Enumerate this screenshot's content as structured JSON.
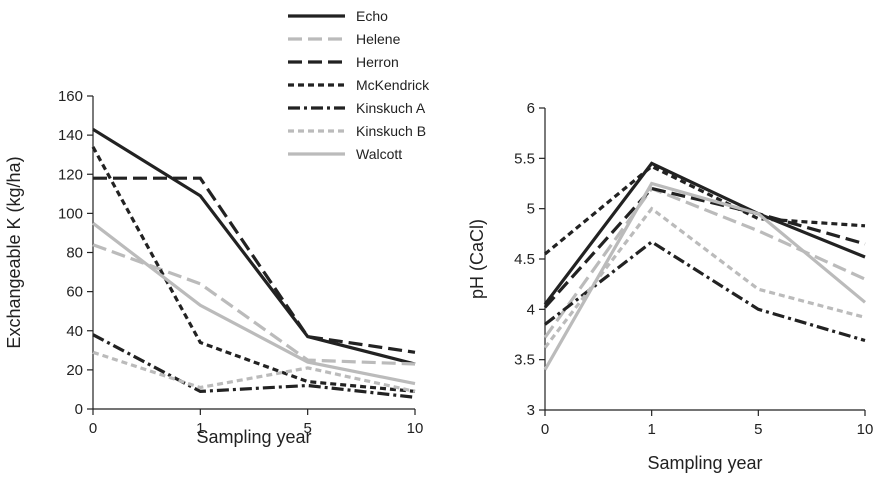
{
  "chart_data": [
    {
      "type": "line",
      "xlabel": "Sampling year",
      "ylabel": "Exchangeable K (kg/ha)",
      "categories": [
        "0",
        "1",
        "5",
        "10"
      ],
      "ylim": [
        0,
        160
      ],
      "yticks": [
        "0",
        "20",
        "40",
        "60",
        "80",
        "100",
        "120",
        "140",
        "160"
      ],
      "grid": false,
      "series": [
        {
          "name": "Echo",
          "color": "#222222",
          "dash": "solid",
          "values": [
            143,
            109,
            37,
            23
          ]
        },
        {
          "name": "Helene",
          "color": "#bbbbbb",
          "dash": "longdash",
          "values": [
            84,
            64,
            25,
            23
          ]
        },
        {
          "name": "Herron",
          "color": "#222222",
          "dash": "longdash",
          "values": [
            118,
            118,
            37,
            29
          ]
        },
        {
          "name": "McKendrick",
          "color": "#222222",
          "dash": "shortdash",
          "values": [
            134,
            34,
            14,
            9
          ]
        },
        {
          "name": "Kinskuch A",
          "color": "#222222",
          "dash": "dashdot",
          "values": [
            38,
            9,
            12,
            6
          ]
        },
        {
          "name": "Kinskuch B",
          "color": "#bbbbbb",
          "dash": "shortdash",
          "values": [
            29,
            11,
            21,
            9
          ]
        },
        {
          "name": "Walcott",
          "color": "#bbbbbb",
          "dash": "solid",
          "values": [
            95,
            53,
            24,
            13
          ]
        }
      ]
    },
    {
      "type": "line",
      "xlabel": "Sampling year",
      "ylabel": "pH (CaCl)",
      "categories": [
        "0",
        "1",
        "5",
        "10"
      ],
      "ylim": [
        3,
        6
      ],
      "yticks": [
        "3",
        "3.5",
        "4",
        "4.5",
        "5",
        "5.5",
        "6"
      ],
      "grid": false,
      "series": [
        {
          "name": "Echo",
          "color": "#222222",
          "dash": "solid",
          "values": [
            4.05,
            5.45,
            4.95,
            4.52
          ]
        },
        {
          "name": "Helene",
          "color": "#bbbbbb",
          "dash": "longdash",
          "values": [
            3.72,
            5.2,
            4.78,
            4.3
          ]
        },
        {
          "name": "Herron",
          "color": "#222222",
          "dash": "longdash",
          "values": [
            4.02,
            5.2,
            4.95,
            4.65
          ]
        },
        {
          "name": "McKendrick",
          "color": "#222222",
          "dash": "shortdash",
          "values": [
            4.55,
            5.42,
            4.9,
            4.83
          ]
        },
        {
          "name": "Kinskuch A",
          "color": "#222222",
          "dash": "dashdot",
          "values": [
            3.85,
            4.67,
            4.0,
            3.69
          ]
        },
        {
          "name": "Kinskuch B",
          "color": "#bbbbbb",
          "dash": "shortdash",
          "values": [
            3.62,
            5.0,
            4.2,
            3.92
          ]
        },
        {
          "name": "Walcott",
          "color": "#bbbbbb",
          "dash": "solid",
          "values": [
            3.4,
            5.25,
            4.95,
            4.07
          ]
        }
      ]
    }
  ],
  "legend": {
    "placement": "top-center",
    "items": [
      "Echo",
      "Helene",
      "Herron",
      "McKendrick",
      "Kinskuch A",
      "Kinskuch B",
      "Walcott"
    ]
  }
}
